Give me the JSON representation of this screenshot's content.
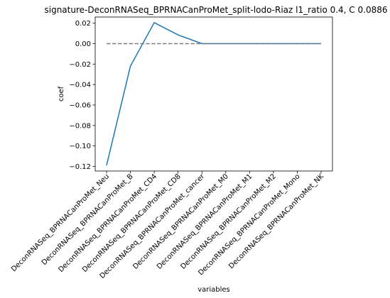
{
  "chart_data": {
    "type": "line",
    "title": "signature-DeconRNASeq_BPRNACanProMet_split-lodo-Riaz l1_ratio 0.4, C 0.0886",
    "xlabel": "variables",
    "ylabel": "coef",
    "categories": [
      "DeconRNASeq_BPRNACanProMet_Neu",
      "DeconRNASeq_BPRNACanProMet_B",
      "DeconRNASeq_BPRNACanProMet_CD4",
      "DeconRNASeq_BPRNACanProMet_CD8",
      "DeconRNASeq_BPRNACanProMet_cancer",
      "DeconRNASeq_BPRNACanProMet_M0",
      "DeconRNASeq_BPRNACanProMet_M1",
      "DeconRNASeq_BPRNACanProMet_M2",
      "DeconRNASeq_BPRNACanProMet_Mono",
      "DeconRNASeq_BPRNACanProMet_NK"
    ],
    "series": [
      {
        "values": [
          -0.119,
          -0.022,
          0.0205,
          0.0085,
          0.0,
          0.0,
          0.0,
          0.0,
          0.0,
          0.0
        ],
        "color": "#1f77b4",
        "style": "solid"
      },
      {
        "values": [
          0,
          0,
          0,
          0,
          0,
          0,
          0,
          0,
          0,
          0
        ],
        "color": "#808080",
        "style": "dashed"
      }
    ],
    "ylim": [
      -0.1245,
      0.026
    ],
    "yticks": [
      {
        "value": 0.02,
        "label": "0.02"
      },
      {
        "value": 0.0,
        "label": "0.00"
      },
      {
        "value": -0.02,
        "label": "−0.02"
      },
      {
        "value": -0.04,
        "label": "−0.04"
      },
      {
        "value": -0.06,
        "label": "−0.06"
      },
      {
        "value": -0.08,
        "label": "−0.08"
      },
      {
        "value": -0.1,
        "label": "−0.10"
      },
      {
        "value": -0.12,
        "label": "−0.12"
      }
    ],
    "grid": false,
    "legend": "none"
  }
}
